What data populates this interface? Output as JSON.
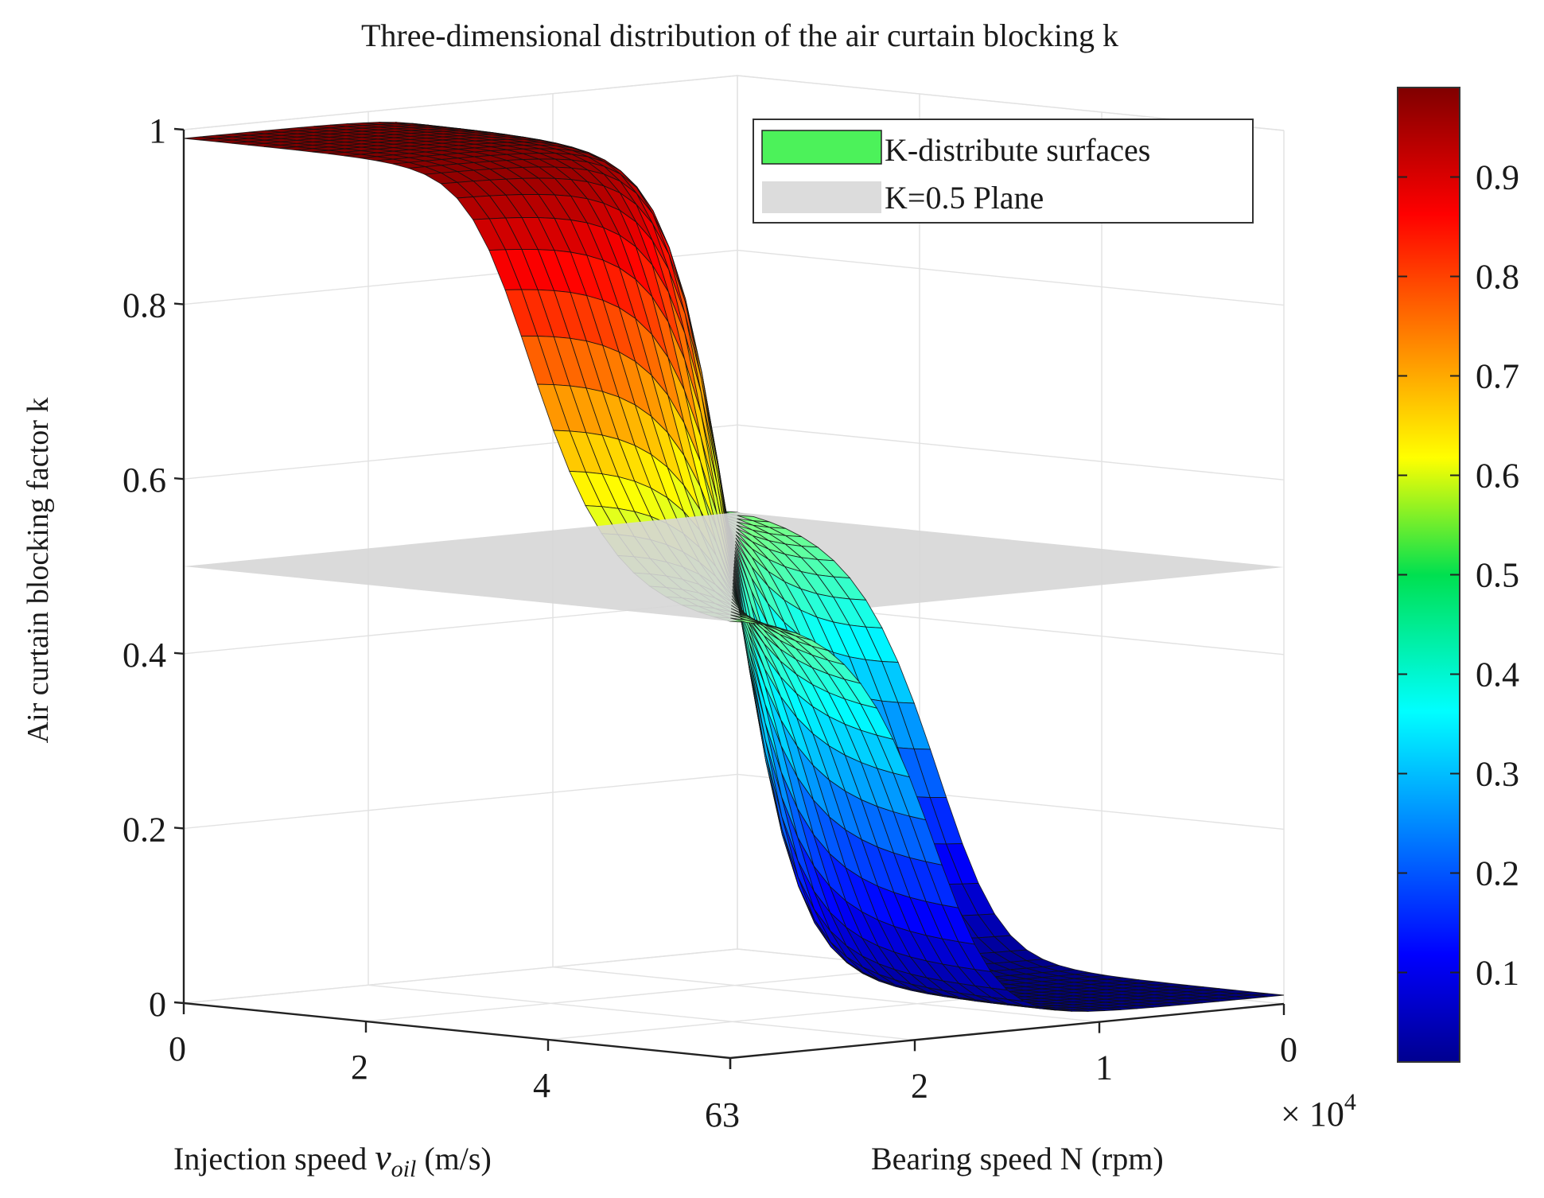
{
  "chart_data": {
    "type": "surface3d",
    "title": "Three-dimensional distribution of the air curtain blocking k",
    "zlabel": "Air curtain blocking factor k",
    "x_axis": {
      "label_prefix": "Injection speed ",
      "label_var": "v",
      "label_sub": "oil",
      "label_suffix": " (m/s)",
      "range": [
        0,
        6
      ],
      "ticks": [
        0,
        2,
        4,
        6
      ],
      "tick_labels": [
        "0",
        "2",
        "4",
        "6"
      ]
    },
    "y_axis": {
      "label": "Bearing speed N (rpm)",
      "range": [
        0,
        3
      ],
      "ticks": [
        0,
        1,
        2,
        3
      ],
      "tick_labels": [
        "0",
        "1",
        "2",
        "3"
      ],
      "exponent_prefix": "× 10",
      "exponent_power": "4"
    },
    "z_axis": {
      "range": [
        0,
        1
      ],
      "ticks": [
        0,
        0.2,
        0.4,
        0.6,
        0.8,
        1
      ],
      "tick_labels": [
        "0",
        "0.2",
        "0.4",
        "0.6",
        "0.8",
        "1"
      ]
    },
    "surface": {
      "name": "K-distribute surfaces",
      "k_max": 0.99,
      "k_min": 0.01,
      "transition": "steep sigmoid crossing k = 0.5 near the rear corner"
    },
    "plane": {
      "name": "K=0.5 Plane",
      "k": 0.5,
      "color": "#d6d6d6"
    },
    "legend": {
      "position": "top-right",
      "entries": [
        {
          "label": "K-distribute surfaces",
          "swatch": "#4cf25a"
        },
        {
          "label": "K=0.5 Plane",
          "swatch": "#dcdcdc"
        }
      ]
    },
    "colorbar": {
      "colormap": "jet",
      "range": [
        0.01,
        0.99
      ],
      "ticks": [
        0.1,
        0.2,
        0.3,
        0.4,
        0.5,
        0.6,
        0.7,
        0.8,
        0.9
      ],
      "tick_labels": [
        "0.1",
        "0.2",
        "0.3",
        "0.4",
        "0.5",
        "0.6",
        "0.7",
        "0.8",
        "0.9"
      ]
    },
    "grid": true
  }
}
